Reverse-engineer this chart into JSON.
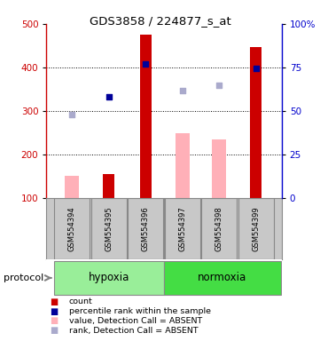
{
  "title": "GDS3858 / 224877_s_at",
  "samples": [
    "GSM554394",
    "GSM554395",
    "GSM554396",
    "GSM554397",
    "GSM554398",
    "GSM554399"
  ],
  "x_positions": [
    1,
    2,
    3,
    4,
    5,
    6
  ],
  "red_bars": [
    null,
    155,
    475,
    null,
    null,
    447
  ],
  "pink_bars": [
    150,
    null,
    null,
    248,
    235,
    null
  ],
  "blue_squares": [
    null,
    332,
    407,
    null,
    null,
    397
  ],
  "light_blue_squares": [
    291,
    null,
    null,
    347,
    358,
    null
  ],
  "ylim": [
    100,
    500
  ],
  "y2lim": [
    0,
    100
  ],
  "yticks": [
    100,
    200,
    300,
    400,
    500
  ],
  "y2ticks": [
    0,
    25,
    50,
    75,
    100
  ],
  "bar_width": 0.32,
  "pink_bar_width": 0.38,
  "red_color": "#CC0000",
  "pink_color": "#FFB0B8",
  "blue_color": "#000099",
  "light_blue_color": "#AAAACC",
  "hypoxia_color": "#99EE99",
  "normoxia_color": "#44DD44",
  "gray_color": "#C8C8C8",
  "grid_color": "black",
  "left_axis_color": "#CC0000",
  "right_axis_color": "#0000CC",
  "xlim": [
    0.3,
    6.7
  ],
  "divider_x": 3.5,
  "legend_labels": [
    "count",
    "percentile rank within the sample",
    "value, Detection Call = ABSENT",
    "rank, Detection Call = ABSENT"
  ],
  "legend_colors": [
    "#CC0000",
    "#000099",
    "#FFB0B8",
    "#AAAACC"
  ],
  "protocol_label": "protocol",
  "hypoxia_label": "hypoxia",
  "normoxia_label": "normoxia"
}
